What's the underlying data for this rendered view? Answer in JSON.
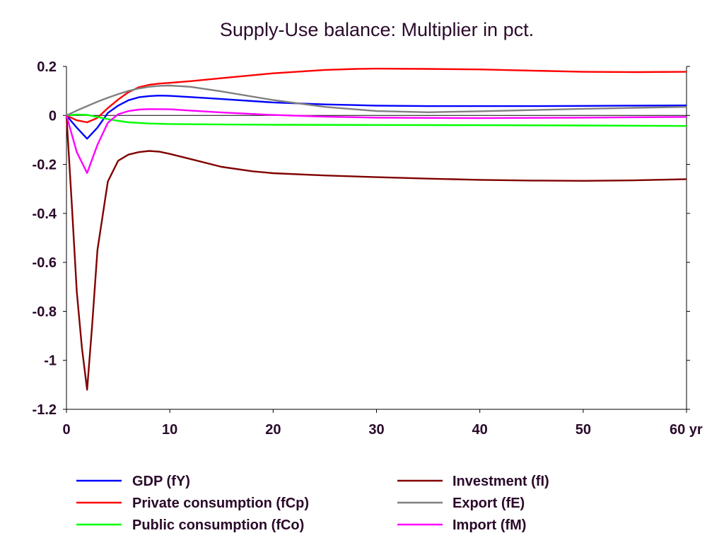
{
  "chart_data": {
    "type": "line",
    "title": "Supply-Use balance: Multiplier in pct.",
    "xlabel": "",
    "ylabel": "",
    "xlim": [
      0,
      60
    ],
    "ylim": [
      -1.2,
      0.2
    ],
    "x_ticks": [
      0,
      10,
      20,
      30,
      40,
      50,
      60
    ],
    "x_tick_labels": [
      "0",
      "10",
      "20",
      "30",
      "40",
      "50",
      "60 yr"
    ],
    "y_ticks": [
      0.2,
      0,
      -0.2,
      -0.4,
      -0.6,
      -0.8,
      -1,
      -1.2
    ],
    "y_tick_labels": [
      "0.2",
      "0",
      "-0.2",
      "-0.4",
      "-0.6",
      "-0.8",
      "-1",
      "-1.2"
    ],
    "grid": false,
    "zero_line": true,
    "legend_position": "bottom",
    "series": [
      {
        "name": "GDP (fY)",
        "color": "#0000ff",
        "points": [
          [
            0,
            0
          ],
          [
            1,
            -0.05
          ],
          [
            2,
            -0.095
          ],
          [
            3,
            -0.05
          ],
          [
            4,
            0.01
          ],
          [
            5,
            0.04
          ],
          [
            6,
            0.062
          ],
          [
            7,
            0.074
          ],
          [
            8,
            0.079
          ],
          [
            9,
            0.081
          ],
          [
            10,
            0.08
          ],
          [
            12,
            0.075
          ],
          [
            15,
            0.067
          ],
          [
            20,
            0.053
          ],
          [
            25,
            0.045
          ],
          [
            30,
            0.04
          ],
          [
            35,
            0.038
          ],
          [
            40,
            0.038
          ],
          [
            45,
            0.038
          ],
          [
            50,
            0.039
          ],
          [
            55,
            0.04
          ],
          [
            60,
            0.041
          ]
        ]
      },
      {
        "name": "Private consumption (fCp)",
        "color": "#ff0000",
        "points": [
          [
            0,
            0
          ],
          [
            1,
            -0.02
          ],
          [
            2,
            -0.028
          ],
          [
            3,
            -0.01
          ],
          [
            4,
            0.03
          ],
          [
            5,
            0.065
          ],
          [
            6,
            0.095
          ],
          [
            7,
            0.115
          ],
          [
            8,
            0.125
          ],
          [
            9,
            0.13
          ],
          [
            10,
            0.133
          ],
          [
            12,
            0.14
          ],
          [
            15,
            0.152
          ],
          [
            20,
            0.172
          ],
          [
            25,
            0.186
          ],
          [
            28,
            0.19
          ],
          [
            30,
            0.191
          ],
          [
            35,
            0.19
          ],
          [
            40,
            0.188
          ],
          [
            45,
            0.183
          ],
          [
            50,
            0.178
          ],
          [
            55,
            0.177
          ],
          [
            60,
            0.178
          ]
        ]
      },
      {
        "name": "Public consumption (fCo)",
        "color": "#00ff00",
        "points": [
          [
            0,
            0
          ],
          [
            1,
            0.004
          ],
          [
            2,
            0.002
          ],
          [
            3,
            -0.006
          ],
          [
            4,
            -0.015
          ],
          [
            5,
            -0.022
          ],
          [
            6,
            -0.028
          ],
          [
            8,
            -0.033
          ],
          [
            10,
            -0.035
          ],
          [
            15,
            -0.037
          ],
          [
            20,
            -0.038
          ],
          [
            30,
            -0.039
          ],
          [
            40,
            -0.04
          ],
          [
            50,
            -0.041
          ],
          [
            60,
            -0.043
          ]
        ]
      },
      {
        "name": "Investment (fI)",
        "color": "#800000",
        "points": [
          [
            0,
            0
          ],
          [
            0.5,
            -0.35
          ],
          [
            1,
            -0.72
          ],
          [
            1.5,
            -0.95
          ],
          [
            2,
            -1.12
          ],
          [
            2.5,
            -0.85
          ],
          [
            3,
            -0.55
          ],
          [
            4,
            -0.27
          ],
          [
            5,
            -0.185
          ],
          [
            6,
            -0.16
          ],
          [
            7,
            -0.15
          ],
          [
            8,
            -0.145
          ],
          [
            9,
            -0.148
          ],
          [
            10,
            -0.157
          ],
          [
            12,
            -0.178
          ],
          [
            15,
            -0.21
          ],
          [
            18,
            -0.228
          ],
          [
            20,
            -0.236
          ],
          [
            25,
            -0.245
          ],
          [
            30,
            -0.252
          ],
          [
            35,
            -0.258
          ],
          [
            40,
            -0.263
          ],
          [
            45,
            -0.266
          ],
          [
            50,
            -0.267
          ],
          [
            55,
            -0.265
          ],
          [
            60,
            -0.26
          ]
        ]
      },
      {
        "name": "Export (fE)",
        "color": "#808080",
        "points": [
          [
            0,
            0
          ],
          [
            1,
            0.02
          ],
          [
            2,
            0.038
          ],
          [
            3,
            0.056
          ],
          [
            4,
            0.072
          ],
          [
            5,
            0.087
          ],
          [
            6,
            0.1
          ],
          [
            7,
            0.11
          ],
          [
            8,
            0.117
          ],
          [
            9,
            0.121
          ],
          [
            10,
            0.122
          ],
          [
            12,
            0.117
          ],
          [
            15,
            0.098
          ],
          [
            20,
            0.063
          ],
          [
            25,
            0.035
          ],
          [
            30,
            0.018
          ],
          [
            35,
            0.013
          ],
          [
            40,
            0.017
          ],
          [
            45,
            0.022
          ],
          [
            50,
            0.027
          ],
          [
            55,
            0.031
          ],
          [
            60,
            0.035
          ]
        ]
      },
      {
        "name": "Import (fM)",
        "color": "#ff00ff",
        "points": [
          [
            0,
            0
          ],
          [
            1,
            -0.15
          ],
          [
            2,
            -0.235
          ],
          [
            3,
            -0.12
          ],
          [
            4,
            -0.03
          ],
          [
            5,
            0.005
          ],
          [
            6,
            0.018
          ],
          [
            7,
            0.024
          ],
          [
            8,
            0.026
          ],
          [
            10,
            0.025
          ],
          [
            12,
            0.02
          ],
          [
            15,
            0.012
          ],
          [
            20,
            0.002
          ],
          [
            25,
            -0.005
          ],
          [
            30,
            -0.009
          ],
          [
            40,
            -0.011
          ],
          [
            50,
            -0.009
          ],
          [
            60,
            -0.006
          ]
        ]
      }
    ],
    "legend": {
      "left": [
        "GDP (fY)",
        "Private consumption (fCp)",
        "Public consumption (fCo)"
      ],
      "right": [
        "Investment (fI)",
        "Export (fE)",
        "Import (fM)"
      ]
    }
  }
}
